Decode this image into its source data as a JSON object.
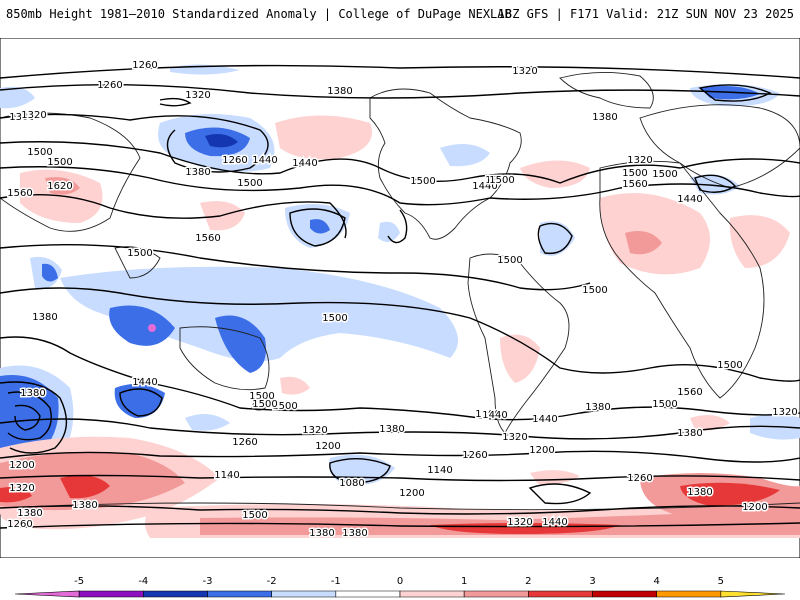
{
  "header": {
    "title": "850mb Height 1981–2010 Standardized Anomaly | College of DuPage NEXLAB",
    "run_info": "18Z GFS | F171 Valid: 21Z SUN NOV 23 2025"
  },
  "map": {
    "projection": "global cylindrical, Pacific-centered",
    "ocean_color": "#ffffff",
    "coast_color": "#222222",
    "contour_color": "#000000",
    "contour_labels": [
      {
        "text": "1260"
      },
      {
        "text": "1320"
      },
      {
        "text": "1380"
      },
      {
        "text": "1260"
      },
      {
        "text": "1320"
      },
      {
        "text": "1380"
      },
      {
        "text": "1320"
      },
      {
        "text": "1260"
      },
      {
        "text": "1380"
      },
      {
        "text": "1500"
      },
      {
        "text": "1440"
      },
      {
        "text": "1440"
      },
      {
        "text": "1560"
      },
      {
        "text": "1620"
      },
      {
        "text": "1500"
      },
      {
        "text": "1560"
      },
      {
        "text": "1500"
      },
      {
        "text": "1500"
      },
      {
        "text": "1440"
      },
      {
        "text": "1380"
      },
      {
        "text": "1320"
      },
      {
        "text": "1380"
      },
      {
        "text": "1500"
      },
      {
        "text": "1500"
      },
      {
        "text": "1500"
      },
      {
        "text": "1560"
      },
      {
        "text": "1500"
      },
      {
        "text": "1440"
      },
      {
        "text": "1380"
      },
      {
        "text": "1500"
      },
      {
        "text": "1500"
      },
      {
        "text": "1500"
      },
      {
        "text": "1440"
      },
      {
        "text": "1500"
      },
      {
        "text": "1500"
      },
      {
        "text": "1380"
      },
      {
        "text": "1200"
      },
      {
        "text": "1320"
      },
      {
        "text": "1500"
      },
      {
        "text": "1380"
      },
      {
        "text": "1440"
      },
      {
        "text": "1380"
      },
      {
        "text": "1260"
      },
      {
        "text": "1200"
      },
      {
        "text": "1320"
      },
      {
        "text": "1260"
      },
      {
        "text": "1200"
      },
      {
        "text": "1140"
      },
      {
        "text": "1080"
      },
      {
        "text": "1200"
      },
      {
        "text": "1140"
      },
      {
        "text": "1380"
      },
      {
        "text": "1320"
      },
      {
        "text": "1260"
      },
      {
        "text": "1380"
      },
      {
        "text": "1440"
      },
      {
        "text": "1380"
      },
      {
        "text": "1200"
      },
      {
        "text": "1260"
      },
      {
        "text": "1380"
      },
      {
        "text": "1320"
      },
      {
        "text": "1500"
      },
      {
        "text": "1560"
      },
      {
        "text": "1500"
      },
      {
        "text": "1500"
      },
      {
        "text": "1320"
      },
      {
        "text": "1380"
      },
      {
        "text": "1500"
      },
      {
        "text": "1440"
      },
      {
        "text": "1380"
      }
    ]
  },
  "colorbar": {
    "ticks": [
      "-5",
      "-4",
      "-3",
      "-2",
      "-1",
      "0",
      "1",
      "2",
      "3",
      "4",
      "5"
    ],
    "colors": [
      "#e36bd8",
      "#8e0fc0",
      "#1436b0",
      "#3c6ee8",
      "#c8dcff",
      "#ffffff",
      "#ffd2d2",
      "#f29a9a",
      "#e63838",
      "#c00000",
      "#ff9900",
      "#ffe030"
    ]
  }
}
